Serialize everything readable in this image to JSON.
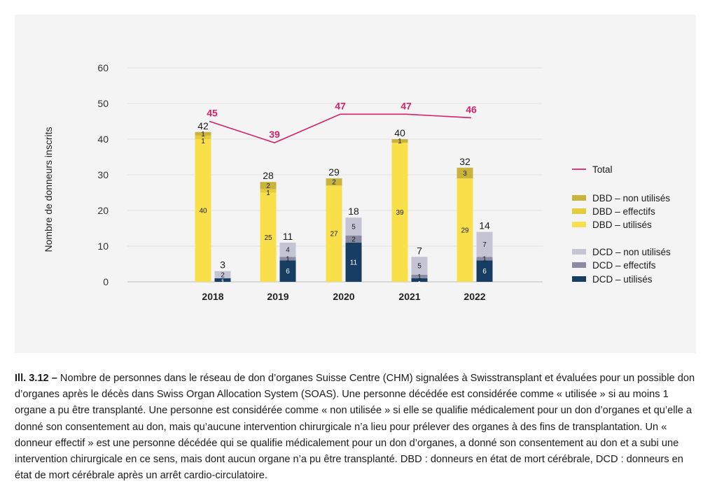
{
  "chart_data": {
    "type": "bar",
    "ylabel": "Nombre de donneurs inscrits",
    "ylim": [
      0,
      60
    ],
    "yticks": [
      0,
      10,
      20,
      30,
      40,
      50,
      60
    ],
    "categories": [
      "2018",
      "2019",
      "2020",
      "2021",
      "2022"
    ],
    "groups": [
      {
        "name": "DBD",
        "totals": [
          42,
          28,
          29,
          40,
          32
        ],
        "series": [
          {
            "name": "DBD – utilisés",
            "color": "#f9e04a",
            "values": [
              40,
              25,
              27,
              39,
              29
            ]
          },
          {
            "name": "DBD – effectifs",
            "color": "#e3cd3e",
            "values": [
              1,
              1,
              0,
              0,
              0
            ]
          },
          {
            "name": "DBD – non utilisés",
            "color": "#c8b43b",
            "values": [
              1,
              2,
              2,
              1,
              3
            ]
          }
        ]
      },
      {
        "name": "DCD",
        "totals": [
          3,
          11,
          18,
          7,
          14
        ],
        "series": [
          {
            "name": "DCD – utilisés",
            "color": "#173d63",
            "values": [
              1,
              6,
              11,
              1,
              6
            ]
          },
          {
            "name": "DCD – effectifs",
            "color": "#8a8aa3",
            "values": [
              0,
              1,
              2,
              1,
              1
            ]
          },
          {
            "name": "DCD – non utilisés",
            "color": "#c4c4d4",
            "values": [
              2,
              4,
              5,
              5,
              7
            ]
          }
        ]
      }
    ],
    "line": {
      "name": "Total",
      "color": "#d61f69",
      "values": [
        45,
        39,
        47,
        47,
        46
      ]
    },
    "legend": [
      {
        "name": "Total",
        "kind": "line",
        "color": "#d61f69"
      },
      {
        "name": "DBD – non utilisés",
        "kind": "box",
        "color": "#c8b43b"
      },
      {
        "name": "DBD – effectifs",
        "kind": "box",
        "color": "#e3cd3e"
      },
      {
        "name": "DBD – utilisés",
        "kind": "box",
        "color": "#f9e04a"
      },
      {
        "name": "DCD – non utilisés",
        "kind": "box",
        "color": "#c4c4d4"
      },
      {
        "name": "DCD – effectifs",
        "kind": "box",
        "color": "#8a8aa3"
      },
      {
        "name": "DCD – utilisés",
        "kind": "box",
        "color": "#173d63"
      }
    ],
    "legend_position": "right"
  },
  "caption": {
    "label": "Ill. 3.12 –",
    "text": " Nombre de personnes dans le réseau de don d’organes Suisse Centre (CHM) signalées à Swisstransplant et évaluées pour un possible don d’organes après le décès dans Swiss Organ Allocation System (SOAS). Une personne décédée est considérée comme « utilisée » si au moins 1 organe a pu être transplanté. Une personne est considérée comme « non utilisée » si elle se qualifie médicalement pour un don d’organes et qu’elle a donné son consentement au don, mais qu’aucune intervention chirurgicale n’a lieu pour prélever des organes à des fins de transplantation. Un « donneur effectif » est une personne décédée qui se qualifie médicalement pour un don d’organes, a donné son consentement au don et a subi une intervention chirurgicale en ce sens, mais dont aucun organe n’a pu être transplanté. DBD : donneurs en état de mort cérébrale, DCD : donneurs en état de mort cérébrale après un arrêt cardio-circulatoire."
  }
}
